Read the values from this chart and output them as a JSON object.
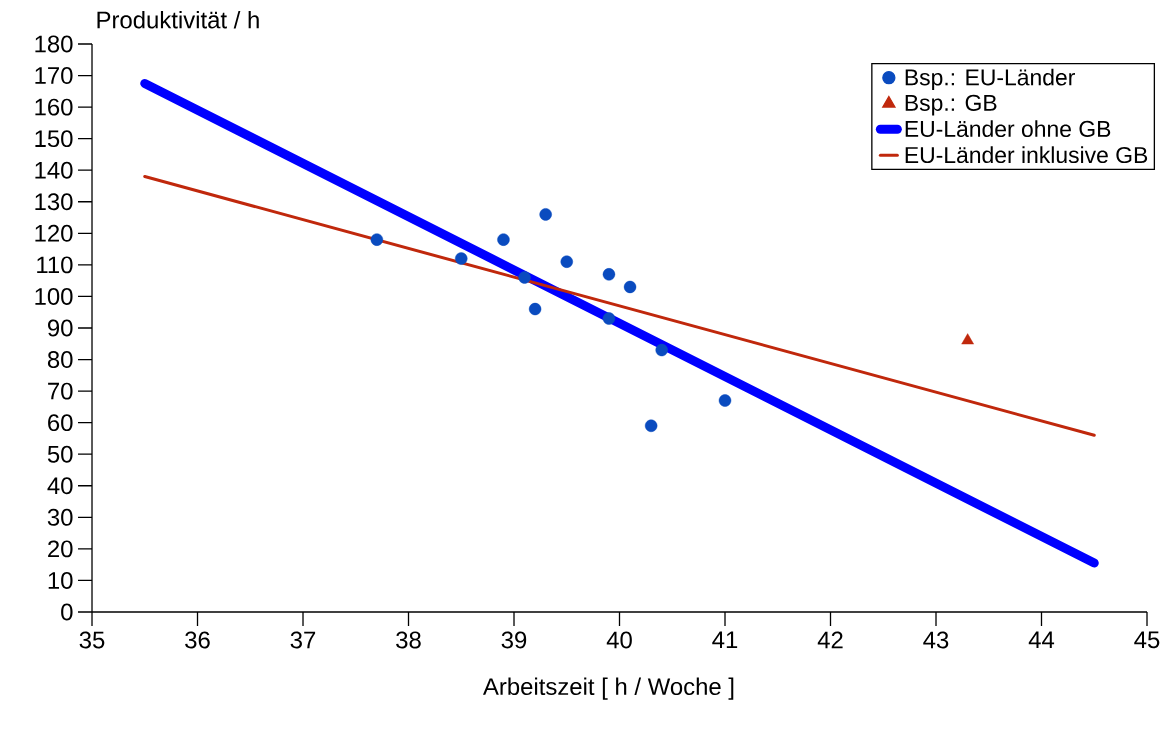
{
  "chart_data": {
    "type": "scatter",
    "ylabel": "Produktivität / h",
    "xlabel": "Arbeitszeit [ h / Woche ]",
    "xlim": [
      35,
      45
    ],
    "xticks": [
      35,
      36,
      37,
      38,
      39,
      40,
      41,
      42,
      43,
      44,
      45
    ],
    "ylim": [
      0,
      180
    ],
    "yticks": [
      0,
      10,
      20,
      30,
      40,
      50,
      60,
      70,
      80,
      90,
      100,
      110,
      120,
      130,
      140,
      150,
      160,
      170,
      180
    ],
    "grid": false,
    "legend": "top right",
    "series": [
      {
        "name": "Bsp.: EU-Länder",
        "marker": "circle",
        "color": "#0a4bbf",
        "x": [
          37.7,
          38.5,
          38.9,
          39.3,
          39.1,
          39.2,
          39.5,
          39.9,
          40.1,
          39.9,
          40.4,
          40.3,
          41.0
        ],
        "values": [
          118,
          112,
          118,
          126,
          106,
          96,
          111,
          107,
          103,
          93,
          83,
          59,
          67
        ]
      },
      {
        "name": "Bsp.: GB",
        "marker": "triangle",
        "color": "#c0280c",
        "x": [
          43.3
        ],
        "values": [
          86
        ]
      },
      {
        "name": "EU-Länder ohne GB",
        "type": "line",
        "marker": "none",
        "color": "#0000ff",
        "x": [
          35.5,
          44.5
        ],
        "values": [
          167.5,
          15.5
        ]
      },
      {
        "name": "EU-Länder inklusive GB",
        "type": "line",
        "marker": "none",
        "color": "#c0280c",
        "x": [
          35.5,
          44.5
        ],
        "values": [
          138,
          56
        ]
      }
    ]
  }
}
